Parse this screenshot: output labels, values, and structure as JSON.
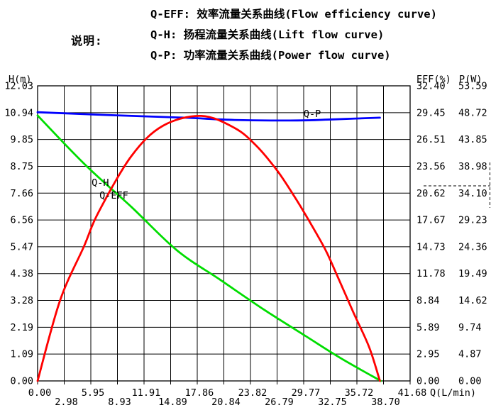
{
  "header": {
    "note_label": "说明:",
    "legend": [
      {
        "key": "Q-EFF",
        "label": "Q-EFF: 效率流量关系曲线(Flow efficiency curve)"
      },
      {
        "key": "Q-H",
        "label": "Q-H: 扬程流量关系曲线(Lift flow curve)"
      },
      {
        "key": "Q-P",
        "label": "Q-P: 功率流量关系曲线(Power flow curve)"
      }
    ]
  },
  "chart_data": {
    "type": "line",
    "grid": true,
    "background": "#ffffff",
    "frame_color": "#000000",
    "x_axis": {
      "label": "Q(L/min)",
      "min": 0,
      "max": 41.68,
      "ticks": [
        0.0,
        2.98,
        5.95,
        8.93,
        11.91,
        14.89,
        17.86,
        20.84,
        23.82,
        26.79,
        29.77,
        32.75,
        35.72,
        38.7,
        41.68
      ]
    },
    "y_axis_left": {
      "label": "H(m)",
      "min": 0,
      "max": 12.03,
      "ticks": [
        12.03,
        10.94,
        9.85,
        8.75,
        7.66,
        6.56,
        5.47,
        4.38,
        3.28,
        2.19,
        1.09,
        0.0
      ]
    },
    "y_axis_right_eff": {
      "label": "EFF(%)",
      "min": 0,
      "max": 32.4,
      "ticks": [
        32.4,
        29.45,
        26.51,
        23.56,
        20.62,
        17.67,
        14.73,
        11.78,
        8.84,
        5.89,
        2.95,
        0.0
      ]
    },
    "y_axis_right_p": {
      "label": "P(W)",
      "min": 0,
      "max": 53.59,
      "ticks": [
        53.59,
        48.72,
        43.85,
        38.98,
        34.1,
        29.23,
        24.36,
        19.49,
        14.62,
        9.74,
        4.87,
        0.0
      ]
    },
    "series": [
      {
        "name": "Q-H",
        "axis": "H",
        "color": "#00dd00",
        "points": [
          [
            0,
            10.82
          ],
          [
            5.3,
            8.82
          ],
          [
            10.5,
            7.09
          ],
          [
            15.6,
            5.32
          ],
          [
            20.4,
            4.13
          ],
          [
            25.4,
            2.89
          ],
          [
            29.9,
            1.85
          ],
          [
            33.9,
            0.93
          ],
          [
            38.4,
            0
          ]
        ]
      },
      {
        "name": "Q-P",
        "axis": "P",
        "color": "#0000ff",
        "points": [
          [
            0,
            48.8
          ],
          [
            7.7,
            48.3
          ],
          [
            16.4,
            47.8
          ],
          [
            22,
            47.4
          ],
          [
            29.1,
            47.3
          ],
          [
            33.1,
            47.5
          ],
          [
            38.3,
            47.8
          ]
        ]
      },
      {
        "name": "Q-EFF",
        "axis": "EFF",
        "color": "#ff0000",
        "points": [
          [
            0,
            0
          ],
          [
            2.5,
            8.8
          ],
          [
            5.2,
            14.8
          ],
          [
            6.8,
            18.5
          ],
          [
            10.5,
            24.7
          ],
          [
            14,
            28
          ],
          [
            18.3,
            29.1
          ],
          [
            22,
            27.8
          ],
          [
            24.4,
            25.9
          ],
          [
            26.8,
            23.1
          ],
          [
            28.7,
            20.3
          ],
          [
            30.3,
            17.7
          ],
          [
            32.1,
            14.6
          ],
          [
            33.1,
            12.5
          ],
          [
            35.3,
            7.6
          ],
          [
            37.1,
            3.7
          ],
          [
            38.3,
            0
          ]
        ]
      }
    ],
    "curve_labels": [
      {
        "text": "Q-H",
        "fx": 0.145,
        "fy": 0.339
      },
      {
        "text": "Q-EFF",
        "fx": 0.166,
        "fy": 0.382
      },
      {
        "text": "Q-P",
        "fx": 0.714,
        "fy": 0.106
      }
    ],
    "rated_point_marker": {
      "eff": 20.62,
      "p": 34.1,
      "style": "dashed"
    }
  }
}
